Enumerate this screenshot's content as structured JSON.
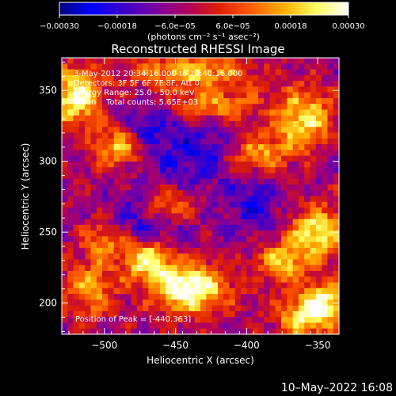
{
  "chart_data": {
    "type": "heatmap",
    "title": "Reconstructed RHESSI Image",
    "xlabel": "Heliocentric X (arcsec)",
    "ylabel": "Heliocentric Y (arcsec)",
    "xlim": [
      -530,
      -335
    ],
    "ylim": [
      178,
      373
    ],
    "x_ticks": [
      -500,
      -450,
      -400,
      -350
    ],
    "y_ticks": [
      200,
      250,
      300,
      350
    ],
    "x_tick_labels": [
      "−500",
      "−450",
      "−400",
      "−350"
    ],
    "y_tick_labels": [
      "200",
      "250",
      "300",
      "350"
    ],
    "colorbar": {
      "range": [
        -0.0003,
        0.0003
      ],
      "tick_values": [
        -0.0003,
        -0.00018,
        -6e-05,
        6e-05,
        0.00018,
        0.0003
      ],
      "tick_labels": [
        "−0.00030",
        "−0.00018",
        "−6.0e−05",
        "6.0e−05",
        "0.00018",
        "0.00030"
      ],
      "unit_label": "(photons cm⁻² s⁻¹ asec⁻²)",
      "colors": [
        "#000080",
        "#0000ff",
        "#3a00c8",
        "#7a00a0",
        "#b00060",
        "#e02000",
        "#ff6000",
        "#ffb000",
        "#ffff60",
        "#ffffff"
      ]
    },
    "annotations": [
      "3-May-2012 20:34:16.000 to 20:40:16.000",
      "Detectors: 3F 5F 6F 7F 8F, Att 0",
      "Energy Range: 25.0 - 50.0 keV",
      "Clean    Total counts: 5.65E+03"
    ],
    "peak_label": "Position of Peak = [-440,363]",
    "peak_position": [
      -440,
      363
    ],
    "grid": false,
    "image": {
      "nx": 48,
      "ny": 48,
      "background": 0.15,
      "bright_regions": [
        {
          "x": -440,
          "y": 210,
          "amp": 0.92,
          "sx": 18,
          "sy": 12
        },
        {
          "x": -470,
          "y": 230,
          "amp": 0.75,
          "sx": 12,
          "sy": 10
        },
        {
          "x": -455,
          "y": 268,
          "amp": 0.6,
          "sx": 12,
          "sy": 8
        },
        {
          "x": -350,
          "y": 250,
          "amp": 0.75,
          "sx": 14,
          "sy": 12
        },
        {
          "x": -375,
          "y": 228,
          "amp": 0.6,
          "sx": 12,
          "sy": 10
        },
        {
          "x": -395,
          "y": 305,
          "amp": 0.6,
          "sx": 18,
          "sy": 10
        },
        {
          "x": -360,
          "y": 330,
          "amp": 0.7,
          "sx": 14,
          "sy": 14
        },
        {
          "x": -345,
          "y": 200,
          "amp": 0.65,
          "sx": 12,
          "sy": 10
        },
        {
          "x": -520,
          "y": 345,
          "amp": 0.8,
          "sx": 12,
          "sy": 14
        },
        {
          "x": -490,
          "y": 310,
          "amp": 0.55,
          "sx": 12,
          "sy": 10
        },
        {
          "x": -510,
          "y": 210,
          "amp": 0.5,
          "sx": 12,
          "sy": 14
        },
        {
          "x": -440,
          "y": 363,
          "amp": 0.55,
          "sx": 30,
          "sy": 8
        },
        {
          "x": -420,
          "y": 340,
          "amp": 0.45,
          "sx": 20,
          "sy": 8
        },
        {
          "x": -360,
          "y": 190,
          "amp": 0.6,
          "sx": 14,
          "sy": 10
        },
        {
          "x": -500,
          "y": 245,
          "amp": 0.45,
          "sx": 10,
          "sy": 10
        }
      ],
      "dark_regions": [
        {
          "x": -430,
          "y": 305,
          "amp": 0.45,
          "sx": 24,
          "sy": 14
        },
        {
          "x": -470,
          "y": 260,
          "amp": 0.35,
          "sx": 20,
          "sy": 14
        },
        {
          "x": -395,
          "y": 268,
          "amp": 0.35,
          "sx": 14,
          "sy": 14
        },
        {
          "x": -470,
          "y": 325,
          "amp": 0.35,
          "sx": 12,
          "sy": 10
        }
      ]
    }
  },
  "footer": {
    "timestamp": "10–May–2022 16:08"
  }
}
